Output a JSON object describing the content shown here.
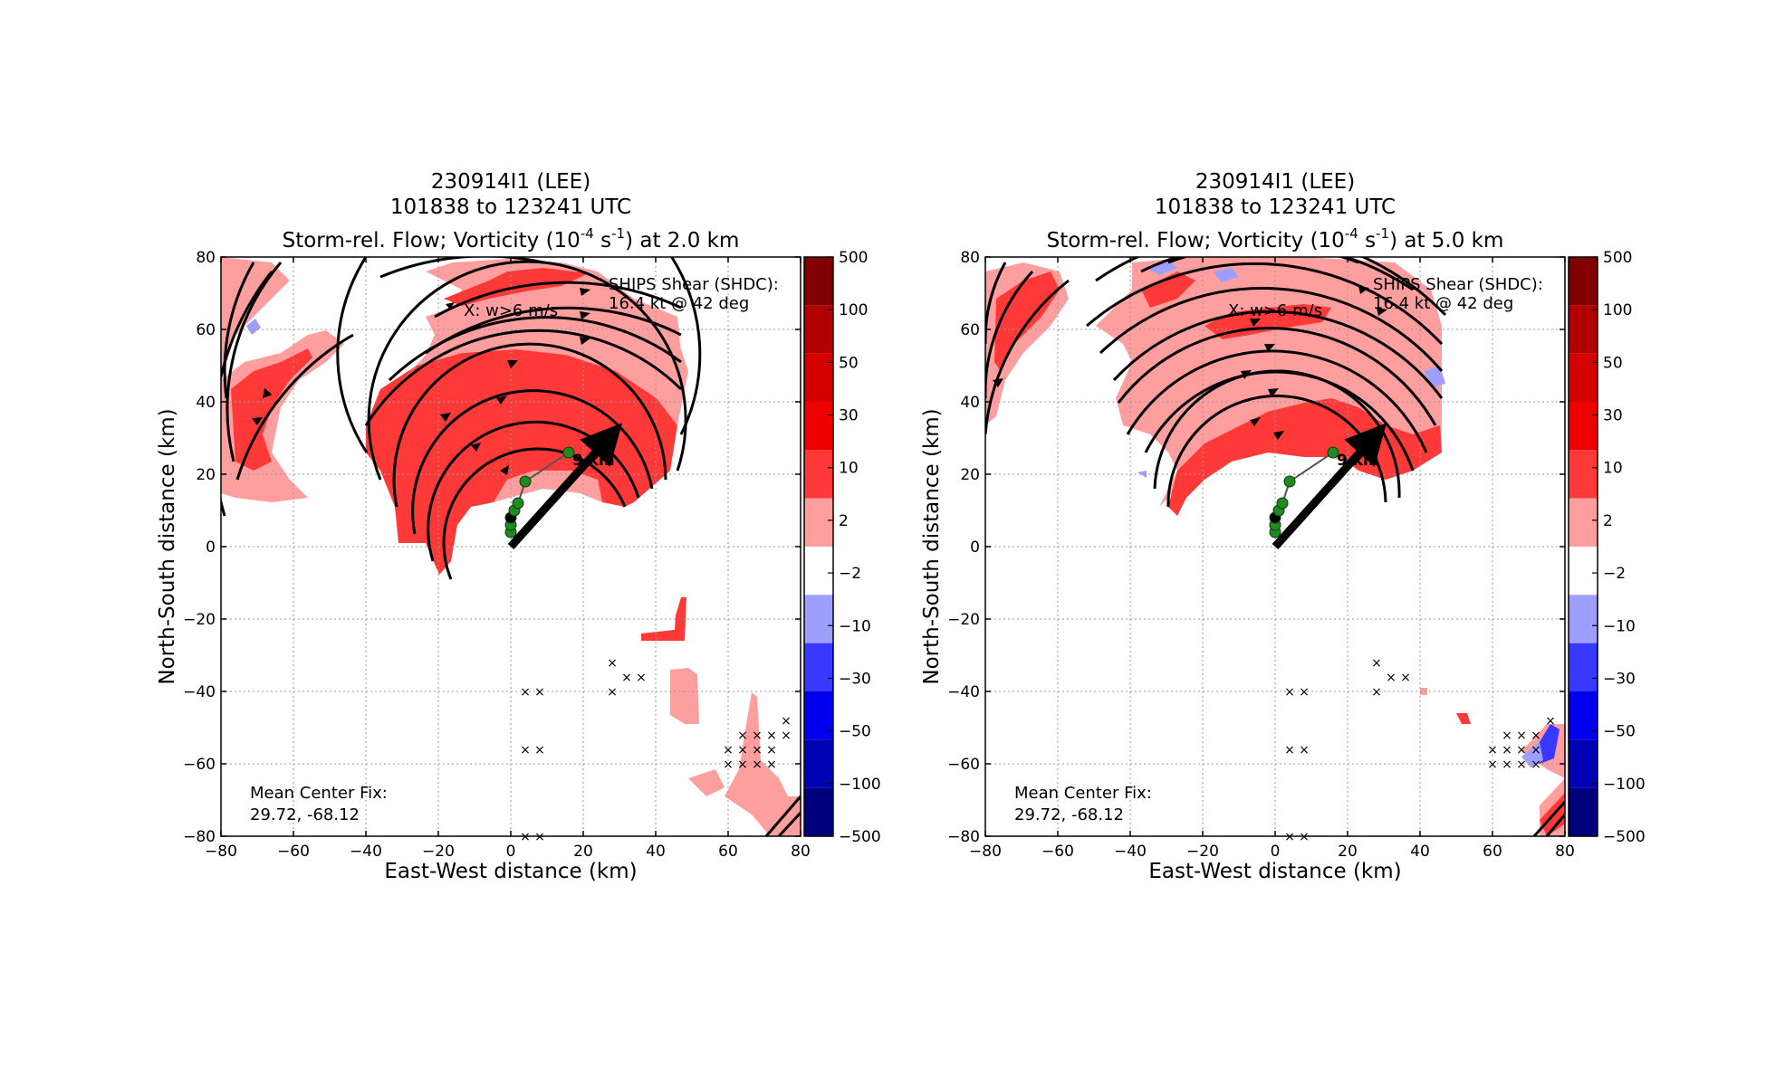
{
  "panels": [
    {
      "title_line1": "230914I1 (LEE)",
      "title_line2": "101838 to 123241 UTC",
      "title_line3_pre": "Storm-rel. Flow; Vorticity (10",
      "title_sup1": "-4",
      "title_mid": " s",
      "title_sup2": "-1",
      "title_line3_post": ") at 2.0 km",
      "shear_label_1": "SHIPS Shear (SHDC):",
      "shear_label_2": "16.4 kt @ 42 deg",
      "updraft_label": "X: w>6 m/s",
      "tilt_label": "9 km",
      "center_fix_1": "Mean Center Fix:",
      "center_fix_2": "29.72, -68.12"
    },
    {
      "title_line1": "230914I1 (LEE)",
      "title_line2": "101838 to 123241 UTC",
      "title_line3_pre": "Storm-rel. Flow; Vorticity (10",
      "title_sup1": "-4",
      "title_mid": " s",
      "title_sup2": "-1",
      "title_line3_post": ") at 5.0 km",
      "shear_label_1": "SHIPS Shear (SHDC):",
      "shear_label_2": "16.4 kt @ 42 deg",
      "updraft_label": "X: w>6 m/s",
      "tilt_label": "9 km",
      "center_fix_1": "Mean Center Fix:",
      "center_fix_2": "29.72, -68.12"
    }
  ],
  "colorbar": {
    "labels": [
      "500",
      "100",
      "50",
      "30",
      "10",
      "2",
      "−2",
      "−10",
      "−30",
      "−50",
      "−100",
      "−500"
    ],
    "colors": [
      "#800000",
      "#b20000",
      "#d40000",
      "#ee0000",
      "#ff3838",
      "#ff9e9e",
      "#ffffff",
      "#9e9eff",
      "#3838ff",
      "#0000ee",
      "#0000b4",
      "#00007e"
    ]
  },
  "chart_data": [
    {
      "type": "heatmap",
      "xlabel": "East-West distance (km)",
      "ylabel": "North-South distance (km)",
      "xlim": [
        -80,
        80
      ],
      "ylim": [
        -80,
        80
      ],
      "xticks": [
        -80,
        -60,
        -40,
        -20,
        0,
        20,
        40,
        60,
        80
      ],
      "yticks": [
        -80,
        -60,
        -40,
        -20,
        0,
        20,
        40,
        60,
        80
      ],
      "grid": true,
      "shear_vector": {
        "from": [
          0,
          0
        ],
        "to": [
          27,
          30
        ]
      },
      "center_track": [
        [
          0,
          4
        ],
        [
          0,
          6
        ],
        [
          0,
          8
        ],
        [
          1,
          10
        ],
        [
          2,
          12
        ],
        [
          4,
          18
        ],
        [
          16,
          26
        ]
      ],
      "updraft_marks": [
        [
          4,
          -40
        ],
        [
          8,
          -40
        ],
        [
          28,
          -32
        ],
        [
          28,
          -40
        ],
        [
          32,
          -36
        ],
        [
          36,
          -36
        ],
        [
          4,
          -56
        ],
        [
          8,
          -56
        ],
        [
          60,
          -56
        ],
        [
          64,
          -56
        ],
        [
          68,
          -56
        ],
        [
          72,
          -56
        ],
        [
          76,
          -52
        ],
        [
          64,
          -52
        ],
        [
          68,
          -52
        ],
        [
          72,
          -52
        ],
        [
          76,
          -48
        ],
        [
          60,
          -60
        ],
        [
          64,
          -60
        ],
        [
          68,
          -60
        ],
        [
          72,
          -60
        ],
        [
          4,
          -80
        ],
        [
          8,
          -80
        ]
      ]
    },
    {
      "type": "heatmap",
      "xlabel": "East-West distance (km)",
      "ylabel": "North-South distance (km)",
      "xlim": [
        -80,
        80
      ],
      "ylim": [
        -80,
        80
      ],
      "xticks": [
        -80,
        -60,
        -40,
        -20,
        0,
        20,
        40,
        60,
        80
      ],
      "yticks": [
        -80,
        -60,
        -40,
        -20,
        0,
        20,
        40,
        60,
        80
      ],
      "grid": true,
      "shear_vector": {
        "from": [
          0,
          0
        ],
        "to": [
          27,
          30
        ]
      },
      "center_track": [
        [
          0,
          4
        ],
        [
          0,
          6
        ],
        [
          0,
          8
        ],
        [
          1,
          10
        ],
        [
          2,
          12
        ],
        [
          4,
          18
        ],
        [
          16,
          26
        ]
      ],
      "updraft_marks": [
        [
          4,
          -40
        ],
        [
          8,
          -40
        ],
        [
          28,
          -32
        ],
        [
          28,
          -40
        ],
        [
          32,
          -36
        ],
        [
          36,
          -36
        ],
        [
          4,
          -56
        ],
        [
          8,
          -56
        ],
        [
          60,
          -56
        ],
        [
          64,
          -56
        ],
        [
          68,
          -56
        ],
        [
          72,
          -56
        ],
        [
          64,
          -52
        ],
        [
          68,
          -52
        ],
        [
          72,
          -52
        ],
        [
          76,
          -48
        ],
        [
          60,
          -60
        ],
        [
          64,
          -60
        ],
        [
          68,
          -60
        ],
        [
          72,
          -60
        ],
        [
          4,
          -80
        ],
        [
          8,
          -80
        ]
      ]
    }
  ]
}
